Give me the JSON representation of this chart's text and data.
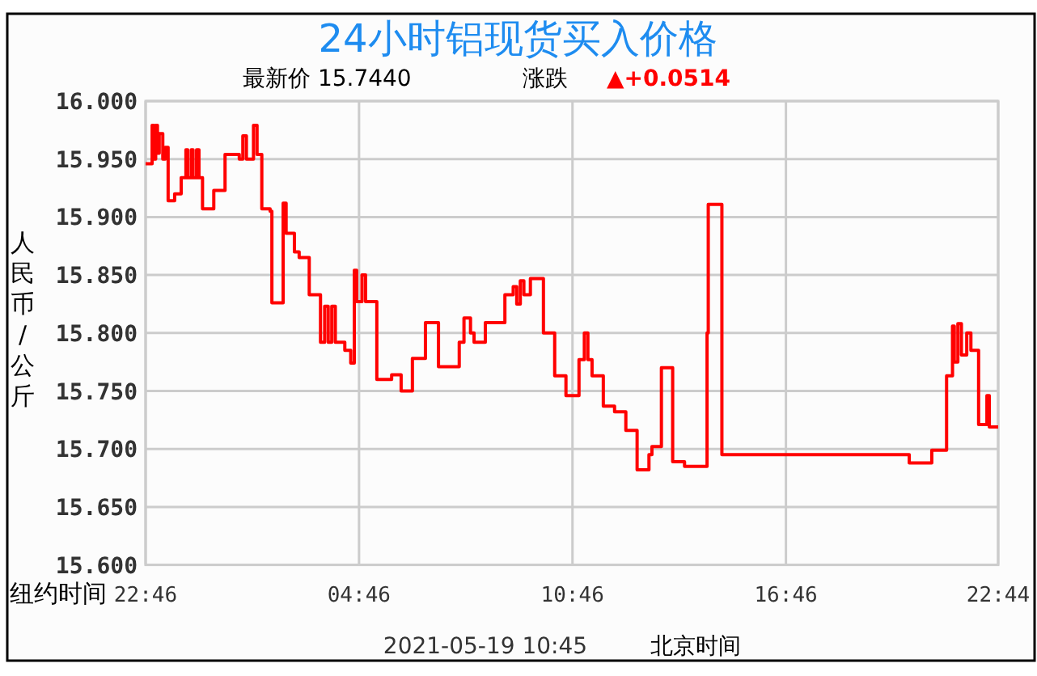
{
  "chart_data": {
    "type": "step",
    "title": "24小时铝现货买入价格",
    "xlabel": "纽约时间",
    "ylabel": "人民币/公斤",
    "annotations": [
      "最新价  15.7440",
      "涨跌",
      "▲+0.0514",
      "2021-05-19 10:45",
      "北京时间"
    ],
    "xlim": [
      "2021-05-17T22:46",
      "2021-05-18T22:44"
    ],
    "ylim": [
      15.6,
      16.0
    ],
    "xticks": [
      {
        "value": "2021-05-17T22:46",
        "label": "22:46"
      },
      {
        "value": "2021-05-18T04:46",
        "label": "04:46"
      },
      {
        "value": "2021-05-18T10:46",
        "label": "10:46"
      },
      {
        "value": "2021-05-18T16:46",
        "label": "16:46"
      },
      {
        "value": "2021-05-18T22:44",
        "label": "22:44"
      }
    ],
    "yticks": [
      {
        "value": 15.6,
        "label": "15.600"
      },
      {
        "value": 15.65,
        "label": "15.650"
      },
      {
        "value": 15.7,
        "label": "15.700"
      },
      {
        "value": 15.75,
        "label": "15.750"
      },
      {
        "value": 15.8,
        "label": "15.800"
      },
      {
        "value": 15.85,
        "label": "15.850"
      },
      {
        "value": 15.9,
        "label": "15.900"
      },
      {
        "value": 15.95,
        "label": "15.950"
      },
      {
        "value": 16.0,
        "label": "16.000"
      }
    ],
    "grid": true,
    "marker": "none",
    "series": [
      {
        "color": "#ff0000",
        "x": [
          "2021-05-17T22:46",
          "2021-05-17T22:57",
          "2021-05-17T23:00",
          "2021-05-17T23:03",
          "2021-05-17T23:06",
          "2021-05-17T23:09",
          "2021-05-17T23:15",
          "2021-05-17T23:19",
          "2021-05-17T23:24",
          "2021-05-17T23:35",
          "2021-05-17T23:46",
          "2021-05-17T23:54",
          "2021-05-17T23:57",
          "2021-05-18T00:03",
          "2021-05-18T00:06",
          "2021-05-18T00:12",
          "2021-05-18T00:16",
          "2021-05-18T00:22",
          "2021-05-18T00:41",
          "2021-05-18T01:00",
          "2021-05-18T01:24",
          "2021-05-18T01:30",
          "2021-05-18T01:36",
          "2021-05-18T01:48",
          "2021-05-18T01:54",
          "2021-05-18T02:02",
          "2021-05-18T02:16",
          "2021-05-18T02:19",
          "2021-05-18T02:38",
          "2021-05-18T02:43",
          "2021-05-18T02:57",
          "2021-05-18T03:05",
          "2021-05-18T03:22",
          "2021-05-18T03:41",
          "2021-05-18T03:48",
          "2021-05-18T03:54",
          "2021-05-18T04:00",
          "2021-05-18T04:06",
          "2021-05-18T04:22",
          "2021-05-18T04:32",
          "2021-05-18T04:38",
          "2021-05-18T04:42",
          "2021-05-18T04:51",
          "2021-05-18T04:57",
          "2021-05-18T05:16",
          "2021-05-18T05:41",
          "2021-05-18T05:57",
          "2021-05-18T06:16",
          "2021-05-18T06:38",
          "2021-05-18T07:00",
          "2021-05-18T07:35",
          "2021-05-18T07:43",
          "2021-05-18T07:54",
          "2021-05-18T08:00",
          "2021-05-18T08:19",
          "2021-05-18T08:52",
          "2021-05-18T09:06",
          "2021-05-18T09:12",
          "2021-05-18T09:18",
          "2021-05-18T09:24",
          "2021-05-18T09:35",
          "2021-05-18T09:57",
          "2021-05-18T10:16",
          "2021-05-18T10:35",
          "2021-05-18T10:57",
          "2021-05-18T11:06",
          "2021-05-18T11:12",
          "2021-05-18T11:19",
          "2021-05-18T11:38",
          "2021-05-18T11:57",
          "2021-05-18T12:16",
          "2021-05-18T12:35",
          "2021-05-18T12:55",
          "2021-05-18T13:00",
          "2021-05-18T13:16",
          "2021-05-18T13:35",
          "2021-05-18T13:55",
          "2021-05-18T14:33",
          "2021-05-18T14:35",
          "2021-05-18T14:58",
          "2021-05-18T20:14",
          "2021-05-18T20:52",
          "2021-05-18T21:17",
          "2021-05-18T21:27",
          "2021-05-18T21:30",
          "2021-05-18T21:36",
          "2021-05-18T21:42",
          "2021-05-18T21:51",
          "2021-05-18T21:58",
          "2021-05-18T22:11",
          "2021-05-18T22:25",
          "2021-05-18T22:29",
          "2021-05-18T22:44"
        ],
        "values": [
          15.946,
          15.979,
          15.95,
          15.979,
          15.955,
          15.972,
          15.95,
          15.96,
          15.914,
          15.92,
          15.934,
          15.958,
          15.934,
          15.958,
          15.934,
          15.958,
          15.934,
          15.907,
          15.923,
          15.954,
          15.95,
          15.97,
          15.95,
          15.979,
          15.954,
          15.907,
          15.905,
          15.826,
          15.912,
          15.886,
          15.87,
          15.865,
          15.833,
          15.792,
          15.823,
          15.792,
          15.823,
          15.792,
          15.785,
          15.774,
          15.854,
          15.827,
          15.85,
          15.827,
          15.76,
          15.764,
          15.75,
          15.778,
          15.809,
          15.771,
          15.792,
          15.813,
          15.8,
          15.792,
          15.809,
          15.833,
          15.84,
          15.825,
          15.845,
          15.833,
          15.847,
          15.8,
          15.763,
          15.746,
          15.777,
          15.8,
          15.777,
          15.763,
          15.737,
          15.732,
          15.716,
          15.682,
          15.695,
          15.702,
          15.77,
          15.689,
          15.685,
          15.8,
          15.911,
          15.695,
          15.688,
          15.699,
          15.763,
          15.806,
          15.775,
          15.808,
          15.781,
          15.8,
          15.785,
          15.721,
          15.746,
          15.719,
          15.719
        ]
      }
    ]
  }
}
